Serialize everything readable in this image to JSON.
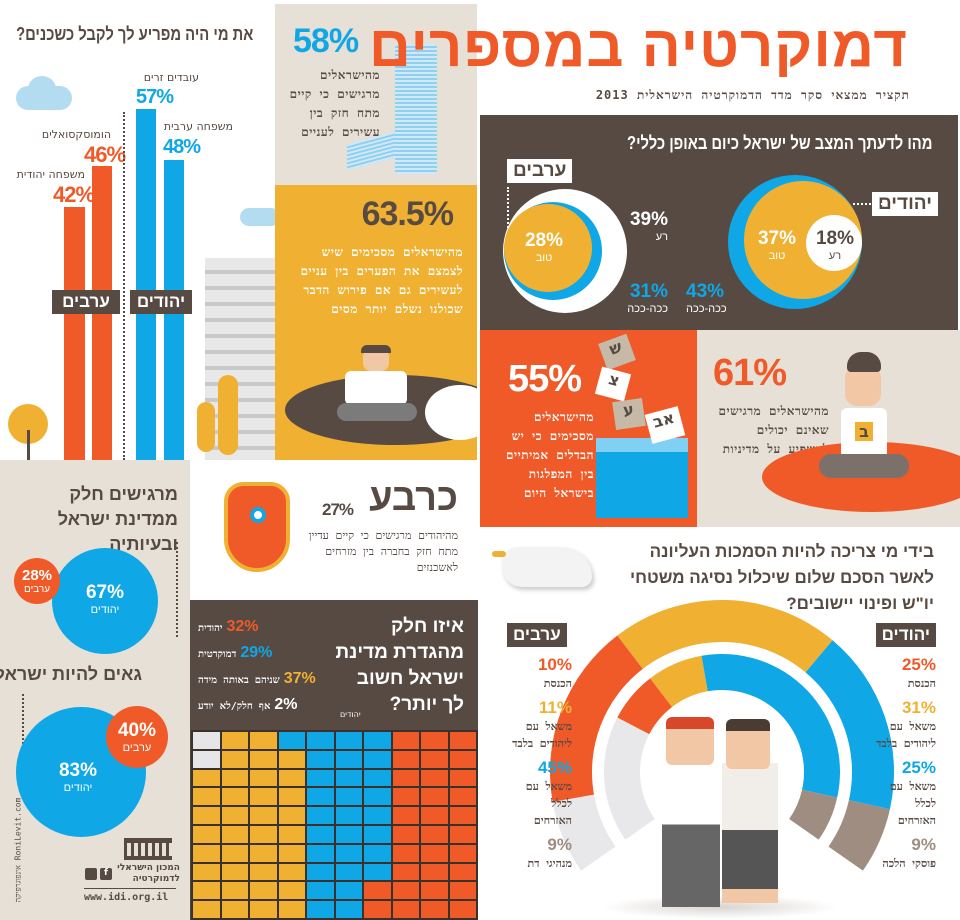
{
  "header": {
    "title": "דמוקרטיה במספרים",
    "subtitle": "תקציר ממצאי סקר מדד הדמוקרטיה הישראלית 2013"
  },
  "neighbors": {
    "question": "את מי היה מפריע לך לקבל כשכנים?",
    "arabs_label": "ערבים",
    "jews_label": "יהודים",
    "bars": [
      {
        "label": "משפחה יהודית",
        "value": "42%",
        "group": "arabs",
        "color": "#f05a28"
      },
      {
        "label": "הומוסקסואלים",
        "value": "46%",
        "group": "arabs",
        "color": "#f05a28"
      },
      {
        "label": "עובדים זרים",
        "value": "57%",
        "group": "jews",
        "color": "#0fa7e6"
      },
      {
        "label": "משפחה ערבית",
        "value": "48%",
        "group": "jews",
        "color": "#0fa7e6"
      }
    ]
  },
  "gap": {
    "value": "58%",
    "text": "מהישראלים מרגישים כי קיים מתח חזק בין עשירים לעניים"
  },
  "reduce": {
    "value": "63.5%",
    "text": "מהישראלים מסכימים שיש לצמצם את הפערים בין עניים לעשירים גם אם פירוש הדבר שכולנו נשלם יותר מסים"
  },
  "situation": {
    "question": "מהו לדעתך המצב של ישראל כיום באופן כללי?",
    "arabs": {
      "label": "ערבים",
      "good": "28%",
      "good_label": "טוב",
      "bad": "39%",
      "bad_label": "רע",
      "soso": "31%",
      "soso_label": "ככה-ככה"
    },
    "jews": {
      "label": "יהודים",
      "good": "37%",
      "good_label": "טוב",
      "bad": "18%",
      "bad_label": "רע",
      "soso": "43%",
      "soso_label": "ככה-ככה"
    }
  },
  "parties": {
    "value": "55%",
    "text": "מהישראלים מסכימים כי יש הבדלים אמיתיים בין המפלגות בישראל היום",
    "ballots": [
      "ש",
      "צ",
      "ע",
      "אב"
    ]
  },
  "influence": {
    "value": "61%",
    "text": "מהישראלים מרגישים שאינם יכולים להשפיע על מדיניות הממשלה",
    "shirt_letter": "ב"
  },
  "belong": {
    "title": "מרגישים חלק ממדינת ישראל ובעיותיה",
    "jews": {
      "value": "67%",
      "label": "יהודים"
    },
    "arabs": {
      "value": "28%",
      "label": "ערבים"
    }
  },
  "proud": {
    "title": "גאים להיות ישראלים",
    "jews": {
      "value": "83%",
      "label": "יהודים"
    },
    "arabs": {
      "value": "40%",
      "label": "ערבים"
    }
  },
  "ethnic": {
    "title": "כרבע",
    "value": "27%",
    "text": "מהיהודים מרגישים כי קיים עדיין מתח חזק בחברה בין מזרחים לאשכנזים"
  },
  "definition": {
    "question": "איזו חלק מהגדרת מדינת ישראל חשוב לך יותר?",
    "question_note": "יהודים",
    "items": [
      {
        "value": "32%",
        "label": "יהודית",
        "color": "#f05a28",
        "cells": 32
      },
      {
        "value": "29%",
        "label": "דמוקרטית",
        "color": "#0fa7e6",
        "cells": 29
      },
      {
        "value": "37%",
        "label": "שניהם באותה מידה",
        "color": "#f0b132",
        "cells": 37
      },
      {
        "value": "2%",
        "label": "אף חלק/לא יודע",
        "color": "#e6e6e9",
        "cells": 2
      }
    ]
  },
  "peace": {
    "question": "בידי מי צריכה להיות הסמכות העליונה לאשר הסכם שלום שיכלול נסיגה משטחי יו\"ש ופינוי יישובים?",
    "arabs_label": "ערבים",
    "jews_label": "יהודים",
    "arabs": [
      {
        "value": "10%",
        "label": "הכנסת",
        "color": "#f05a28",
        "n": 10
      },
      {
        "value": "11%",
        "label": "משאל עם ליהודים בלבד",
        "color": "#f0b132",
        "n": 11
      },
      {
        "value": "45%",
        "label": "משאל עם לכלל האזרחים",
        "color": "#0fa7e6",
        "n": 45
      },
      {
        "value": "9%",
        "label": "מנהיגי דת",
        "color": "#9e8d80",
        "n": 9
      }
    ],
    "jews": [
      {
        "value": "25%",
        "label": "הכנסת",
        "color": "#f05a28",
        "n": 25
      },
      {
        "value": "31%",
        "label": "משאל עם ליהודים בלבד",
        "color": "#f0b132",
        "n": 31
      },
      {
        "value": "25%",
        "label": "משאל עם לכלל האזרחים",
        "color": "#0fa7e6",
        "n": 25
      },
      {
        "value": "9%",
        "label": "פוסקי הלכה",
        "color": "#9e8d80",
        "n": 9
      }
    ]
  },
  "footer": {
    "org": "המכון הישראלי לדמוקרטיה",
    "url": "www.idi.org.il",
    "credit": "אינפוגרפיקה RoniLevit.com"
  }
}
